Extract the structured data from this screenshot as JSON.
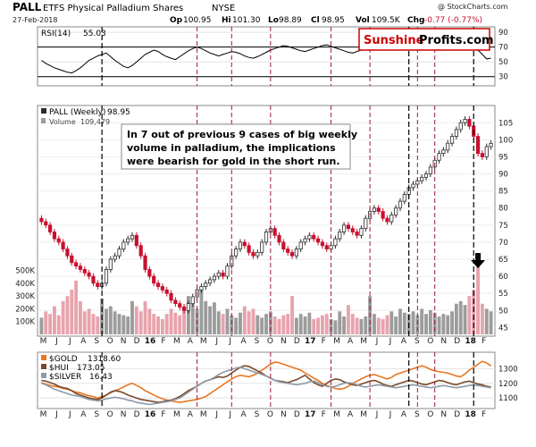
{
  "header": {
    "symbol": "PALL",
    "name": "ETFS Physical Palladium Shares",
    "exchange": "NYSE",
    "copyright": "@ StockCharts.com",
    "date": "27-Feb-2018",
    "open_label": "Op",
    "open": "100.95",
    "high_label": "Hi",
    "high": "101.30",
    "low_label": "Lo",
    "low": "98.89",
    "close_label": "Cl",
    "close": "98.95",
    "vol_label": "Vol",
    "vol": "109.5K",
    "chg_label": "Chg",
    "chg": "-0.77 (-0.77%)"
  },
  "branding": {
    "part1": "Sunshine",
    "part2": "Profits.com"
  },
  "annotation": {
    "line1": "In 7 out of previous 9 cases of big weekly",
    "line2": "volume in palladium, the implications",
    "line3": "were bearish for gold in the short run."
  },
  "colors": {
    "up": "#2b2b2b",
    "down": "#c8102e",
    "vol_up": "#9c9c9c",
    "vol_down": "#e8a3ad",
    "gold": "#e87722",
    "hui": "#7a4a2a",
    "silver": "#8c9aa8",
    "black_line": "#000000",
    "red_line": "#9e1b32",
    "brand": "#cc0000"
  },
  "chart_data": [
    {
      "type": "line",
      "title": "RSI(14) 55.03",
      "legend_label": "RSI(14)",
      "legend_value": "55.03",
      "ylim": [
        20,
        95
      ],
      "yticks": [
        "90",
        "70",
        "50",
        "30"
      ],
      "guides": [
        70,
        30
      ],
      "values": [
        52,
        48,
        45,
        42,
        40,
        38,
        36,
        35,
        38,
        42,
        47,
        52,
        55,
        58,
        60,
        62,
        57,
        52,
        48,
        44,
        42,
        45,
        50,
        55,
        60,
        63,
        66,
        64,
        60,
        57,
        55,
        53,
        57,
        61,
        65,
        68,
        70,
        68,
        65,
        62,
        60,
        58,
        60,
        62,
        64,
        63,
        61,
        58,
        56,
        55,
        57,
        60,
        63,
        66,
        68,
        70,
        72,
        71,
        69,
        67,
        65,
        64,
        66,
        68,
        70,
        72,
        73,
        71,
        69,
        67,
        65,
        63,
        62,
        64,
        66,
        68,
        70,
        72,
        71,
        69,
        68,
        67,
        69,
        71,
        73,
        75,
        76,
        74,
        72,
        71,
        70,
        72,
        74,
        76,
        77,
        78,
        76,
        74,
        72,
        70,
        68,
        66,
        60,
        54,
        55.03
      ]
    },
    {
      "type": "candlestick",
      "title": "PALL (Weekly) 98.95",
      "legend_label": "PALL (Weekly)",
      "legend_value": "98.95",
      "volume_label": "Volume",
      "volume_value": "109,479",
      "ylim": [
        43,
        109
      ],
      "yticks": [
        "105",
        "100",
        "95",
        "90",
        "85",
        "80",
        "75",
        "70",
        "65",
        "60",
        "55",
        "50",
        "45"
      ],
      "x_labels": [
        {
          "t": "M",
          "b": false
        },
        {
          "t": "J",
          "b": false
        },
        {
          "t": "J",
          "b": false
        },
        {
          "t": "A",
          "b": false
        },
        {
          "t": "S",
          "b": false
        },
        {
          "t": "O",
          "b": false
        },
        {
          "t": "N",
          "b": false
        },
        {
          "t": "D",
          "b": false
        },
        {
          "t": "16",
          "b": true
        },
        {
          "t": "F",
          "b": false
        },
        {
          "t": "M",
          "b": false
        },
        {
          "t": "A",
          "b": false
        },
        {
          "t": "M",
          "b": false
        },
        {
          "t": "J",
          "b": false
        },
        {
          "t": "J",
          "b": false
        },
        {
          "t": "A",
          "b": false
        },
        {
          "t": "S",
          "b": false
        },
        {
          "t": "O",
          "b": false
        },
        {
          "t": "N",
          "b": false
        },
        {
          "t": "D",
          "b": false
        },
        {
          "t": "17",
          "b": true
        },
        {
          "t": "F",
          "b": false
        },
        {
          "t": "M",
          "b": false
        },
        {
          "t": "A",
          "b": false
        },
        {
          "t": "M",
          "b": false
        },
        {
          "t": "J",
          "b": false
        },
        {
          "t": "J",
          "b": false
        },
        {
          "t": "A",
          "b": false
        },
        {
          "t": "S",
          "b": false
        },
        {
          "t": "O",
          "b": false
        },
        {
          "t": "N",
          "b": false
        },
        {
          "t": "D",
          "b": false
        },
        {
          "t": "18",
          "b": true
        },
        {
          "t": "F",
          "b": false
        }
      ],
      "closes": [
        76,
        75,
        73,
        71,
        70,
        68,
        66,
        64,
        63,
        62,
        61,
        60,
        58,
        57,
        58,
        62,
        65,
        66,
        68,
        70,
        71,
        72,
        69,
        66,
        62,
        60,
        58,
        57,
        56,
        55,
        53,
        52,
        51,
        50,
        52,
        54,
        56,
        57,
        58,
        59,
        60,
        61,
        60,
        63,
        66,
        68,
        70,
        69,
        67,
        66,
        67,
        70,
        73,
        74,
        72,
        70,
        68,
        67,
        66,
        68,
        70,
        71,
        72,
        71,
        70,
        69,
        68,
        69,
        71,
        73,
        75,
        74,
        73,
        72,
        74,
        77,
        79,
        80,
        79,
        77,
        76,
        78,
        80,
        82,
        84,
        86,
        87,
        88,
        89,
        90,
        92,
        94,
        96,
        97,
        99,
        101,
        103,
        105,
        106,
        104,
        101,
        96,
        95,
        98,
        98.95
      ],
      "volume_axis": {
        "max": 560,
        "ticks": [
          {
            "v": 500,
            "t": "500K"
          },
          {
            "v": 400,
            "t": "400K"
          },
          {
            "v": 300,
            "t": "300K"
          },
          {
            "v": 200,
            "t": "200K"
          },
          {
            "v": 100,
            "t": "100K"
          }
        ]
      },
      "volume": [
        130,
        180,
        160,
        220,
        150,
        260,
        300,
        350,
        420,
        260,
        180,
        200,
        160,
        140,
        280,
        200,
        220,
        180,
        160,
        150,
        140,
        260,
        220,
        180,
        260,
        200,
        160,
        140,
        120,
        160,
        200,
        170,
        150,
        220,
        300,
        240,
        200,
        360,
        260,
        220,
        250,
        180,
        160,
        200,
        150,
        130,
        170,
        220,
        180,
        200,
        150,
        130,
        160,
        180,
        140,
        120,
        150,
        160,
        300,
        130,
        160,
        140,
        170,
        120,
        130,
        150,
        160,
        120,
        110,
        180,
        140,
        230,
        160,
        130,
        120,
        140,
        300,
        160,
        130,
        120,
        150,
        180,
        140,
        200,
        170,
        160,
        180,
        150,
        200,
        160,
        190,
        170,
        140,
        160,
        150,
        180,
        240,
        260,
        230,
        300,
        350,
        550,
        240,
        200,
        180
      ],
      "black_dashed_weeks": [
        14,
        85,
        100
      ],
      "red_dashed_weeks": [
        36,
        44,
        53,
        67,
        76,
        87,
        91
      ],
      "arrow_week": 101
    },
    {
      "type": "line",
      "title": "$GOLD / $HUI / $SILVER",
      "ylim": [
        1040,
        1400
      ],
      "yticks": [
        "1300",
        "1200",
        "1100"
      ],
      "series": [
        {
          "name": "$GOLD",
          "value": "1318.60",
          "color_key": "gold",
          "values": [
            1205,
            1195,
            1185,
            1180,
            1175,
            1165,
            1160,
            1150,
            1140,
            1135,
            1125,
            1115,
            1110,
            1100,
            1110,
            1120,
            1135,
            1150,
            1160,
            1175,
            1190,
            1200,
            1185,
            1170,
            1150,
            1135,
            1120,
            1105,
            1095,
            1085,
            1080,
            1075,
            1070,
            1075,
            1080,
            1085,
            1090,
            1100,
            1110,
            1130,
            1150,
            1170,
            1190,
            1210,
            1230,
            1245,
            1255,
            1250,
            1245,
            1255,
            1270,
            1290,
            1310,
            1330,
            1345,
            1340,
            1330,
            1320,
            1310,
            1300,
            1290,
            1270,
            1255,
            1235,
            1220,
            1200,
            1185,
            1175,
            1165,
            1160,
            1165,
            1180,
            1200,
            1215,
            1230,
            1245,
            1255,
            1260,
            1250,
            1240,
            1230,
            1240,
            1260,
            1270,
            1280,
            1290,
            1300,
            1310,
            1320,
            1310,
            1295,
            1285,
            1280,
            1275,
            1270,
            1260,
            1250,
            1245,
            1265,
            1290,
            1310,
            1330,
            1350,
            1340,
            1318.6
          ]
        },
        {
          "name": "$HUI",
          "value": "173.05",
          "color_key": "hui",
          "values": [
            1220,
            1215,
            1205,
            1195,
            1180,
            1170,
            1165,
            1150,
            1130,
            1120,
            1110,
            1100,
            1095,
            1090,
            1100,
            1120,
            1140,
            1150,
            1145,
            1135,
            1120,
            1110,
            1100,
            1090,
            1085,
            1080,
            1075,
            1070,
            1075,
            1080,
            1085,
            1095,
            1110,
            1130,
            1150,
            1165,
            1180,
            1200,
            1215,
            1225,
            1235,
            1245,
            1240,
            1250,
            1270,
            1290,
            1310,
            1320,
            1315,
            1300,
            1285,
            1270,
            1250,
            1235,
            1220,
            1215,
            1210,
            1205,
            1215,
            1225,
            1240,
            1255,
            1230,
            1205,
            1190,
            1180,
            1200,
            1220,
            1230,
            1225,
            1210,
            1200,
            1190,
            1185,
            1195,
            1205,
            1215,
            1220,
            1210,
            1195,
            1185,
            1180,
            1190,
            1200,
            1210,
            1220,
            1215,
            1205,
            1195,
            1190,
            1200,
            1210,
            1220,
            1215,
            1205,
            1195,
            1190,
            1200,
            1210,
            1215,
            1205,
            1195,
            1190,
            1180,
            1175
          ]
        },
        {
          "name": "$SILVER",
          "value": "16.43",
          "color_key": "silver",
          "values": [
            1200,
            1190,
            1175,
            1160,
            1150,
            1140,
            1130,
            1120,
            1115,
            1110,
            1100,
            1090,
            1085,
            1080,
            1085,
            1095,
            1100,
            1105,
            1100,
            1095,
            1085,
            1080,
            1070,
            1065,
            1060,
            1055,
            1060,
            1065,
            1070,
            1075,
            1080,
            1090,
            1100,
            1120,
            1140,
            1160,
            1180,
            1200,
            1215,
            1225,
            1240,
            1260,
            1275,
            1285,
            1295,
            1305,
            1310,
            1300,
            1290,
            1280,
            1270,
            1260,
            1250,
            1235,
            1220,
            1210,
            1205,
            1200,
            1195,
            1190,
            1195,
            1200,
            1210,
            1215,
            1205,
            1190,
            1180,
            1175,
            1180,
            1190,
            1200,
            1205,
            1200,
            1190,
            1180,
            1175,
            1180,
            1185,
            1190,
            1185,
            1180,
            1175,
            1170,
            1175,
            1180,
            1185,
            1190,
            1185,
            1180,
            1175,
            1170,
            1175,
            1180,
            1185,
            1180,
            1175,
            1170,
            1175,
            1180,
            1185,
            1190,
            1185,
            1180,
            1175,
            1170
          ]
        }
      ]
    }
  ]
}
